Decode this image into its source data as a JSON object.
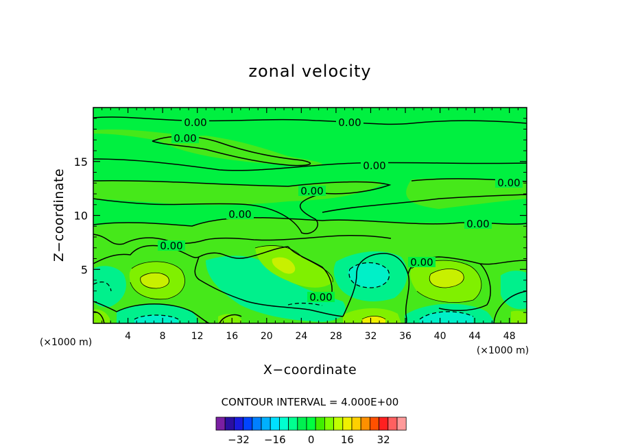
{
  "chart_data": {
    "type": "heatmap",
    "title": "zonal velocity",
    "xlabel": "X−coordinate",
    "ylabel": "Z−coordinate",
    "x_unit_left": "(×1000 m)",
    "x_unit_right": "(×1000 m)",
    "xlim": [
      0,
      50
    ],
    "ylim": [
      0,
      20
    ],
    "x_ticks": [
      4,
      8,
      12,
      16,
      20,
      24,
      28,
      32,
      36,
      40,
      44,
      48
    ],
    "y_ticks": [
      5,
      10,
      15
    ],
    "contour_interval_text": "CONTOUR INTERVAL = 4.000E+00",
    "contour_labels": [
      "0.00",
      "0.00",
      "0.00",
      "0.00",
      "0.00",
      "0.00",
      "0.00",
      "0.00",
      "0.00",
      "0.00",
      "0.00"
    ],
    "colorbar": {
      "tick_labels": [
        "−32",
        "−16",
        "0",
        "16",
        "32"
      ],
      "tick_values": [
        -32,
        -16,
        0,
        16,
        32
      ],
      "levels": [
        -40,
        -36,
        -32,
        -28,
        -24,
        -20,
        -16,
        -12,
        -8,
        -4,
        0,
        4,
        8,
        12,
        16,
        20,
        24,
        28,
        32,
        36,
        40
      ],
      "colors": [
        "#7a1fa2",
        "#2b0fa0",
        "#1a1adc",
        "#0044ff",
        "#0080ff",
        "#00b0ff",
        "#00e0ff",
        "#00ffd0",
        "#00ff90",
        "#00f050",
        "#00ff40",
        "#40ee00",
        "#80ff00",
        "#c0ff00",
        "#f0f000",
        "#ffd000",
        "#ff9000",
        "#ff5000",
        "#ff2020",
        "#ff6060",
        "#ff9a9a"
      ]
    },
    "field_colors": {
      "background": "#00f040",
      "light_green": "#46e81a",
      "lime": "#80f000",
      "yellow_green": "#c8f000",
      "cyan_green": "#00f08c",
      "cyan": "#00f0c8",
      "yellow": "#f0f000"
    }
  }
}
